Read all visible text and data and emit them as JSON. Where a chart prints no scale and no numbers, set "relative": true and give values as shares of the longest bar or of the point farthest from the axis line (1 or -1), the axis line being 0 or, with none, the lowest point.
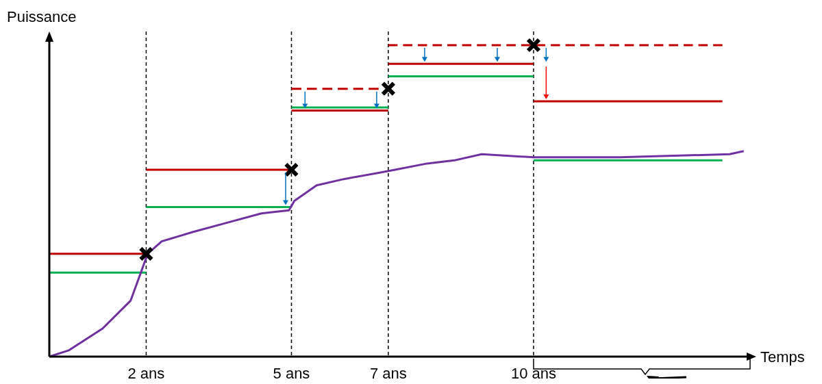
{
  "chart_data": {
    "type": "line",
    "relative": true,
    "xlabel": "Temps",
    "ylabel": "Puissance",
    "xlim": [
      0,
      14.4
    ],
    "xticks": [
      {
        "value": 2,
        "label": "2 ans"
      },
      {
        "value": 5,
        "label": "5 ans"
      },
      {
        "value": 7,
        "label": "7 ans"
      },
      {
        "value": 10,
        "label": "10 ans"
      }
    ],
    "grid": "x",
    "series": [
      {
        "color": "#c00000",
        "x": [
          0,
          2
        ],
        "values": [
          0.33,
          0.33
        ]
      },
      {
        "color": "#c00000",
        "x": [
          2,
          5
        ],
        "values": [
          0.6,
          0.6
        ]
      },
      {
        "color": "#c00000",
        "x": [
          5,
          7
        ],
        "values": [
          0.79,
          0.79
        ]
      },
      {
        "color": "#c00000",
        "x": [
          7,
          10
        ],
        "values": [
          0.94,
          0.94
        ]
      },
      {
        "color": "#c00000",
        "x": [
          10,
          13.9
        ],
        "values": [
          0.82,
          0.82
        ]
      },
      {
        "color": "#00b050",
        "x": [
          0,
          2
        ],
        "values": [
          0.27,
          0.27
        ]
      },
      {
        "color": "#00b050",
        "x": [
          2,
          5
        ],
        "values": [
          0.48,
          0.48
        ]
      },
      {
        "color": "#00b050",
        "x": [
          5,
          7
        ],
        "values": [
          0.8,
          0.8
        ]
      },
      {
        "color": "#00b050",
        "x": [
          7,
          10
        ],
        "values": [
          0.9,
          0.9
        ]
      },
      {
        "color": "#00b050",
        "x": [
          10,
          13.9
        ],
        "values": [
          0.63,
          0.63
        ]
      },
      {
        "color": "#c00000",
        "line_style": "dashed",
        "x": [
          5,
          6.8
        ],
        "values": [
          0.86,
          0.86
        ]
      },
      {
        "color": "#c00000",
        "line_style": "dashed",
        "x": [
          7,
          13.9
        ],
        "values": [
          1.0,
          1.0
        ]
      },
      {
        "color": "#7030a0",
        "x": [
          0,
          0.4,
          1.1,
          1.68,
          1.89,
          2.03,
          2.32,
          2.96,
          3.67,
          4.38,
          4.95,
          5.06,
          5.52,
          6.08,
          6.8,
          7.14,
          7.8,
          8.36,
          8.93,
          10.0,
          11.78,
          14.05,
          14.34
        ],
        "values": [
          0,
          0.02,
          0.09,
          0.18,
          0.27,
          0.33,
          0.37,
          0.4,
          0.43,
          0.46,
          0.47,
          0.5,
          0.55,
          0.57,
          0.59,
          0.6,
          0.62,
          0.63,
          0.65,
          0.64,
          0.64,
          0.65,
          0.66
        ]
      },
      {
        "type": "scatter",
        "marker": "cross",
        "color": "#000000",
        "x": [
          2,
          5,
          7,
          10
        ],
        "values": [
          0.33,
          0.6,
          0.86,
          1.0
        ]
      }
    ],
    "marker": "none",
    "line_style": "solid"
  }
}
